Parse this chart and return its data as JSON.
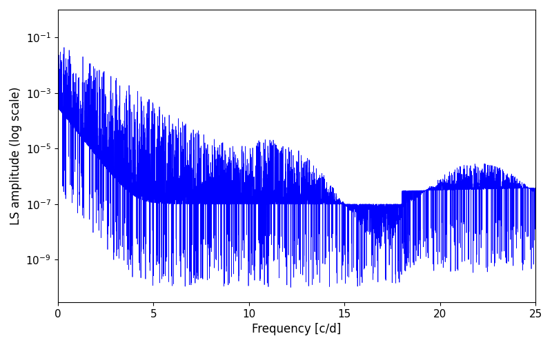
{
  "xlabel": "Frequency [c/d]",
  "ylabel": "LS amplitude (log scale)",
  "title": "",
  "line_color": "#0000ff",
  "background_color": "#ffffff",
  "xlim": [
    0,
    25
  ],
  "ylim": [
    3e-11,
    1.0
  ],
  "yticks": [
    1e-09,
    1e-07,
    1e-05,
    0.001,
    0.1
  ],
  "xticks": [
    0,
    5,
    10,
    15,
    20,
    25
  ],
  "freq_max": 25.0,
  "n_freqs": 6000,
  "seed": 42,
  "figsize": [
    8.0,
    5.0
  ],
  "dpi": 100,
  "linewidth": 0.5
}
